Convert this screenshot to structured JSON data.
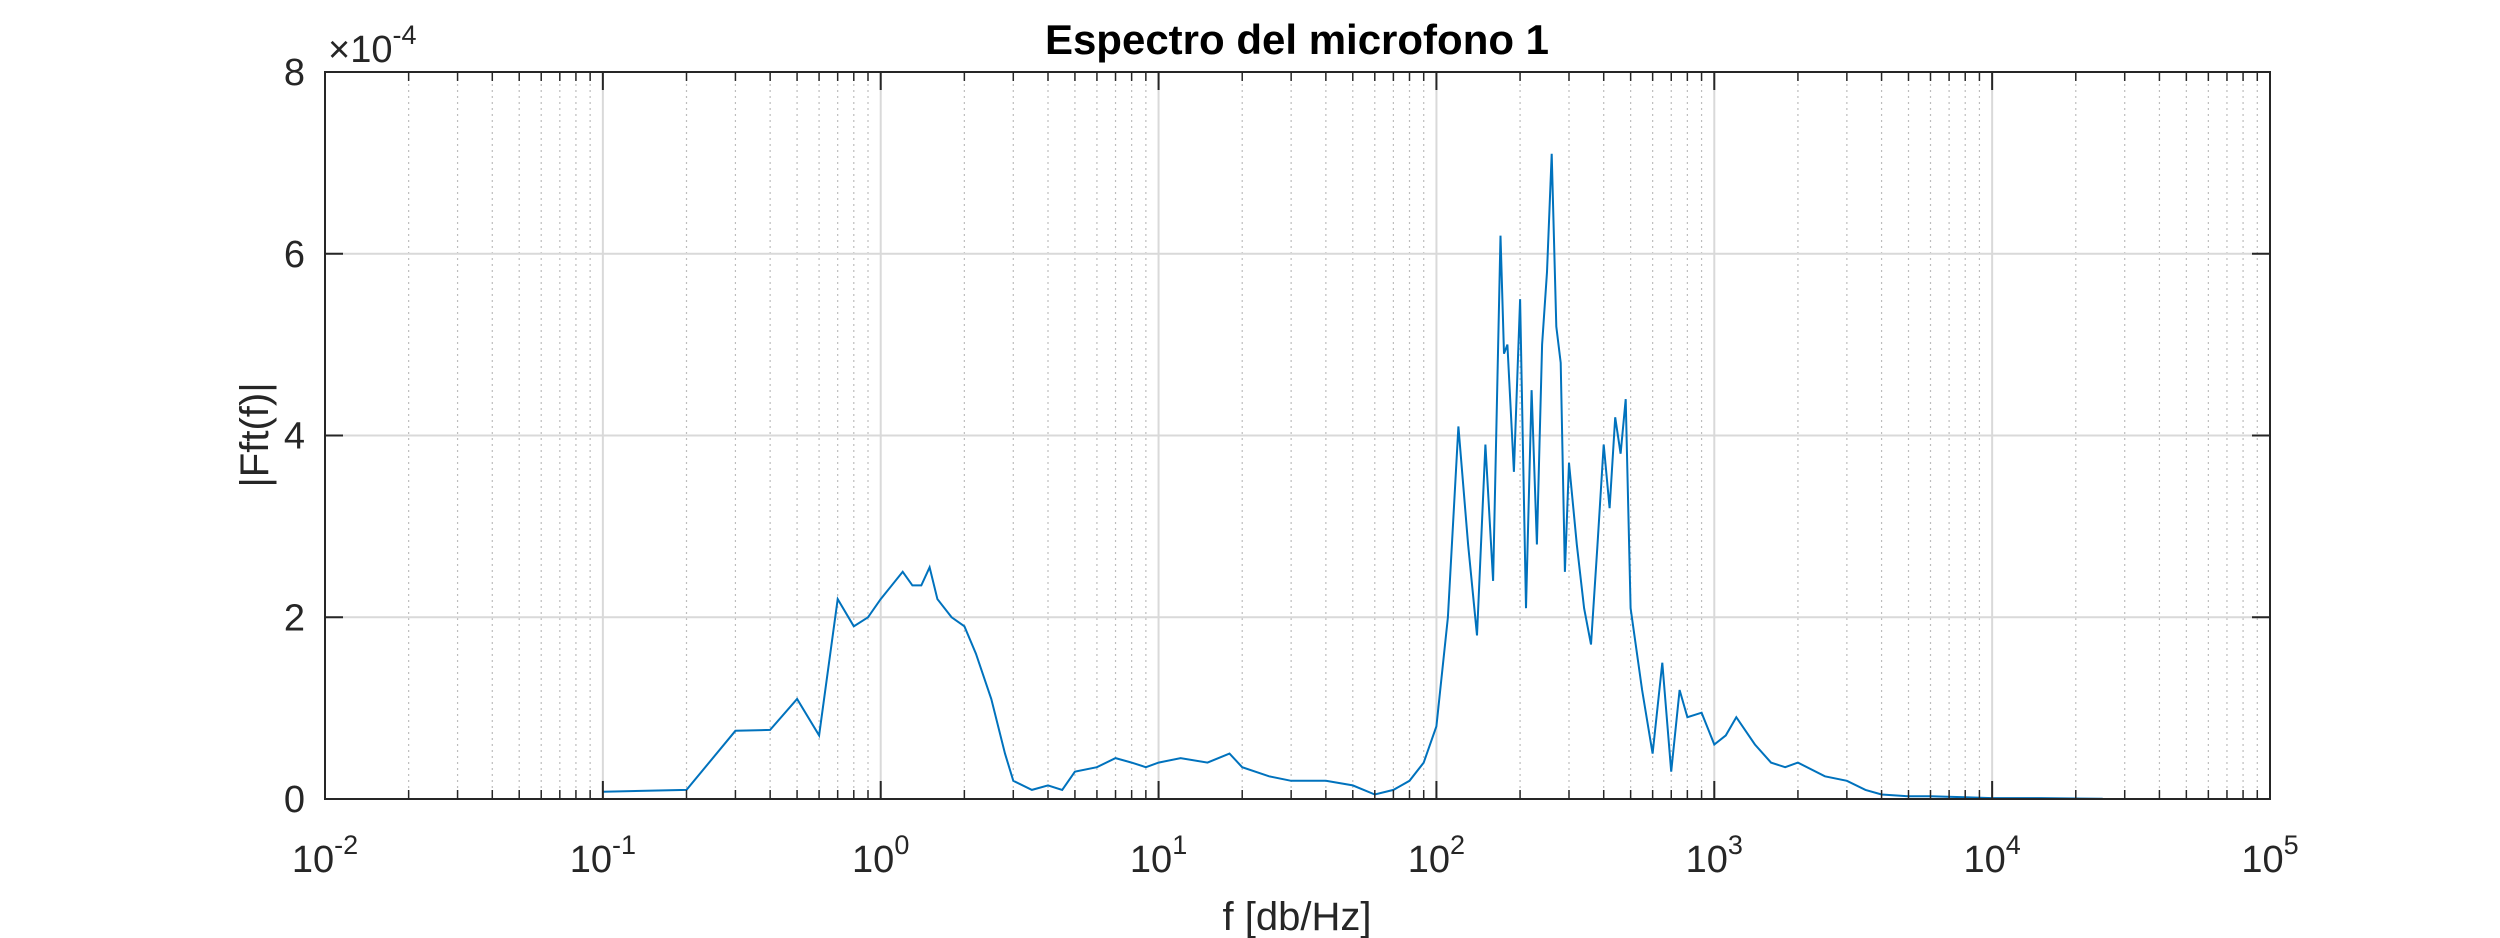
{
  "chart_data": {
    "type": "line",
    "title": "Espectro del microfono 1",
    "xlabel": "f [db/Hz]",
    "ylabel": "|Fft(f)|",
    "x_scale": "log",
    "xlim": [
      0.01,
      100000
    ],
    "ylim": [
      0,
      0.0008
    ],
    "y_exponent_label": "×10",
    "y_exponent_power": "-4",
    "x_tick_base": "10",
    "x_ticks": [
      {
        "value": 0.01,
        "power": "-2"
      },
      {
        "value": 0.1,
        "power": "-1"
      },
      {
        "value": 1,
        "power": "0"
      },
      {
        "value": 10,
        "power": "1"
      },
      {
        "value": 100,
        "power": "2"
      },
      {
        "value": 1000,
        "power": "3"
      },
      {
        "value": 10000,
        "power": "4"
      },
      {
        "value": 100000,
        "power": "5"
      }
    ],
    "y_ticks": [
      {
        "value": 0,
        "label": "0"
      },
      {
        "value": 0.0002,
        "label": "2"
      },
      {
        "value": 0.0004,
        "label": "4"
      },
      {
        "value": 0.0006,
        "label": "6"
      },
      {
        "value": 0.0008,
        "label": "8"
      }
    ],
    "grid": true,
    "line_color": "#0072BD",
    "series": [
      {
        "x": [
          0.1,
          0.2,
          0.3,
          0.4,
          0.5,
          0.6,
          0.7,
          0.8,
          0.9,
          1.0,
          1.2,
          1.3,
          1.4,
          1.5,
          1.6,
          1.8,
          2.0,
          2.2,
          2.5,
          2.8,
          3.0,
          3.5,
          4.0,
          4.5,
          5.0,
          6.0,
          7.0,
          8.0,
          9.0,
          10,
          12,
          15,
          18,
          20,
          25,
          30,
          40,
          50,
          60,
          70,
          80,
          90,
          100,
          110,
          120,
          130,
          140,
          150,
          160,
          170,
          175,
          180,
          190,
          200,
          210,
          220,
          230,
          240,
          250,
          260,
          270,
          280,
          290,
          300,
          320,
          340,
          360,
          380,
          400,
          420,
          440,
          460,
          480,
          500,
          550,
          600,
          650,
          700,
          750,
          800,
          900,
          1000,
          1100,
          1200,
          1400,
          1600,
          1800,
          2000,
          2500,
          3000,
          3500,
          4000,
          5000,
          6000,
          8000,
          10000,
          15000,
          20000,
          25000
        ],
        "y": [
          8e-06,
          1e-05,
          7.5e-05,
          7.6e-05,
          0.00011,
          7e-05,
          0.00022,
          0.00019,
          0.0002,
          0.00022,
          0.00025,
          0.000235,
          0.000235,
          0.000255,
          0.00022,
          0.0002,
          0.00019,
          0.00016,
          0.00011,
          5e-05,
          2e-05,
          1e-05,
          1.5e-05,
          1e-05,
          3e-05,
          3.5e-05,
          4.5e-05,
          4e-05,
          3.5e-05,
          4e-05,
          4.5e-05,
          4e-05,
          5e-05,
          3.5e-05,
          2.5e-05,
          2e-05,
          2e-05,
          1.5e-05,
          5e-06,
          1e-05,
          2e-05,
          4e-05,
          8e-05,
          0.0002,
          0.00041,
          0.00028,
          0.00018,
          0.00039,
          0.00024,
          0.00062,
          0.00049,
          0.0005,
          0.00036,
          0.00055,
          0.00021,
          0.00045,
          0.00028,
          0.0005,
          0.00058,
          0.00071,
          0.00052,
          0.00048,
          0.00025,
          0.00037,
          0.00028,
          0.00021,
          0.00017,
          0.00028,
          0.00039,
          0.00032,
          0.00042,
          0.00038,
          0.00044,
          0.00021,
          0.00012,
          5e-05,
          0.00015,
          3e-05,
          0.00012,
          9e-05,
          9.5e-05,
          6e-05,
          7e-05,
          9e-05,
          6e-05,
          4e-05,
          3.5e-05,
          4e-05,
          2.5e-05,
          2e-05,
          1e-05,
          5e-06,
          3e-06,
          3e-06,
          2e-06,
          1e-06,
          1e-06,
          5e-07,
          2e-07
        ]
      }
    ]
  }
}
